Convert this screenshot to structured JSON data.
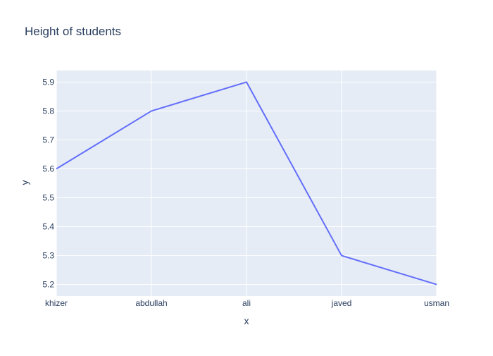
{
  "chart_data": {
    "type": "line",
    "title": "Height of students",
    "xlabel": "x",
    "ylabel": "y",
    "categories": [
      "khizer",
      "abdullah",
      "ali",
      "javed",
      "usman"
    ],
    "series": [
      {
        "values": [
          5.6,
          5.8,
          5.9,
          5.3,
          5.2
        ]
      }
    ],
    "ylim": [
      5.16,
      5.94
    ],
    "yticks": [
      5.2,
      5.3,
      5.4,
      5.5,
      5.6,
      5.7,
      5.8,
      5.9
    ],
    "grid": true,
    "colors": {
      "plot_background": "#e5ecf6",
      "grid": "#ffffff",
      "line": "#636efa",
      "text": "#2a3f5f"
    }
  }
}
